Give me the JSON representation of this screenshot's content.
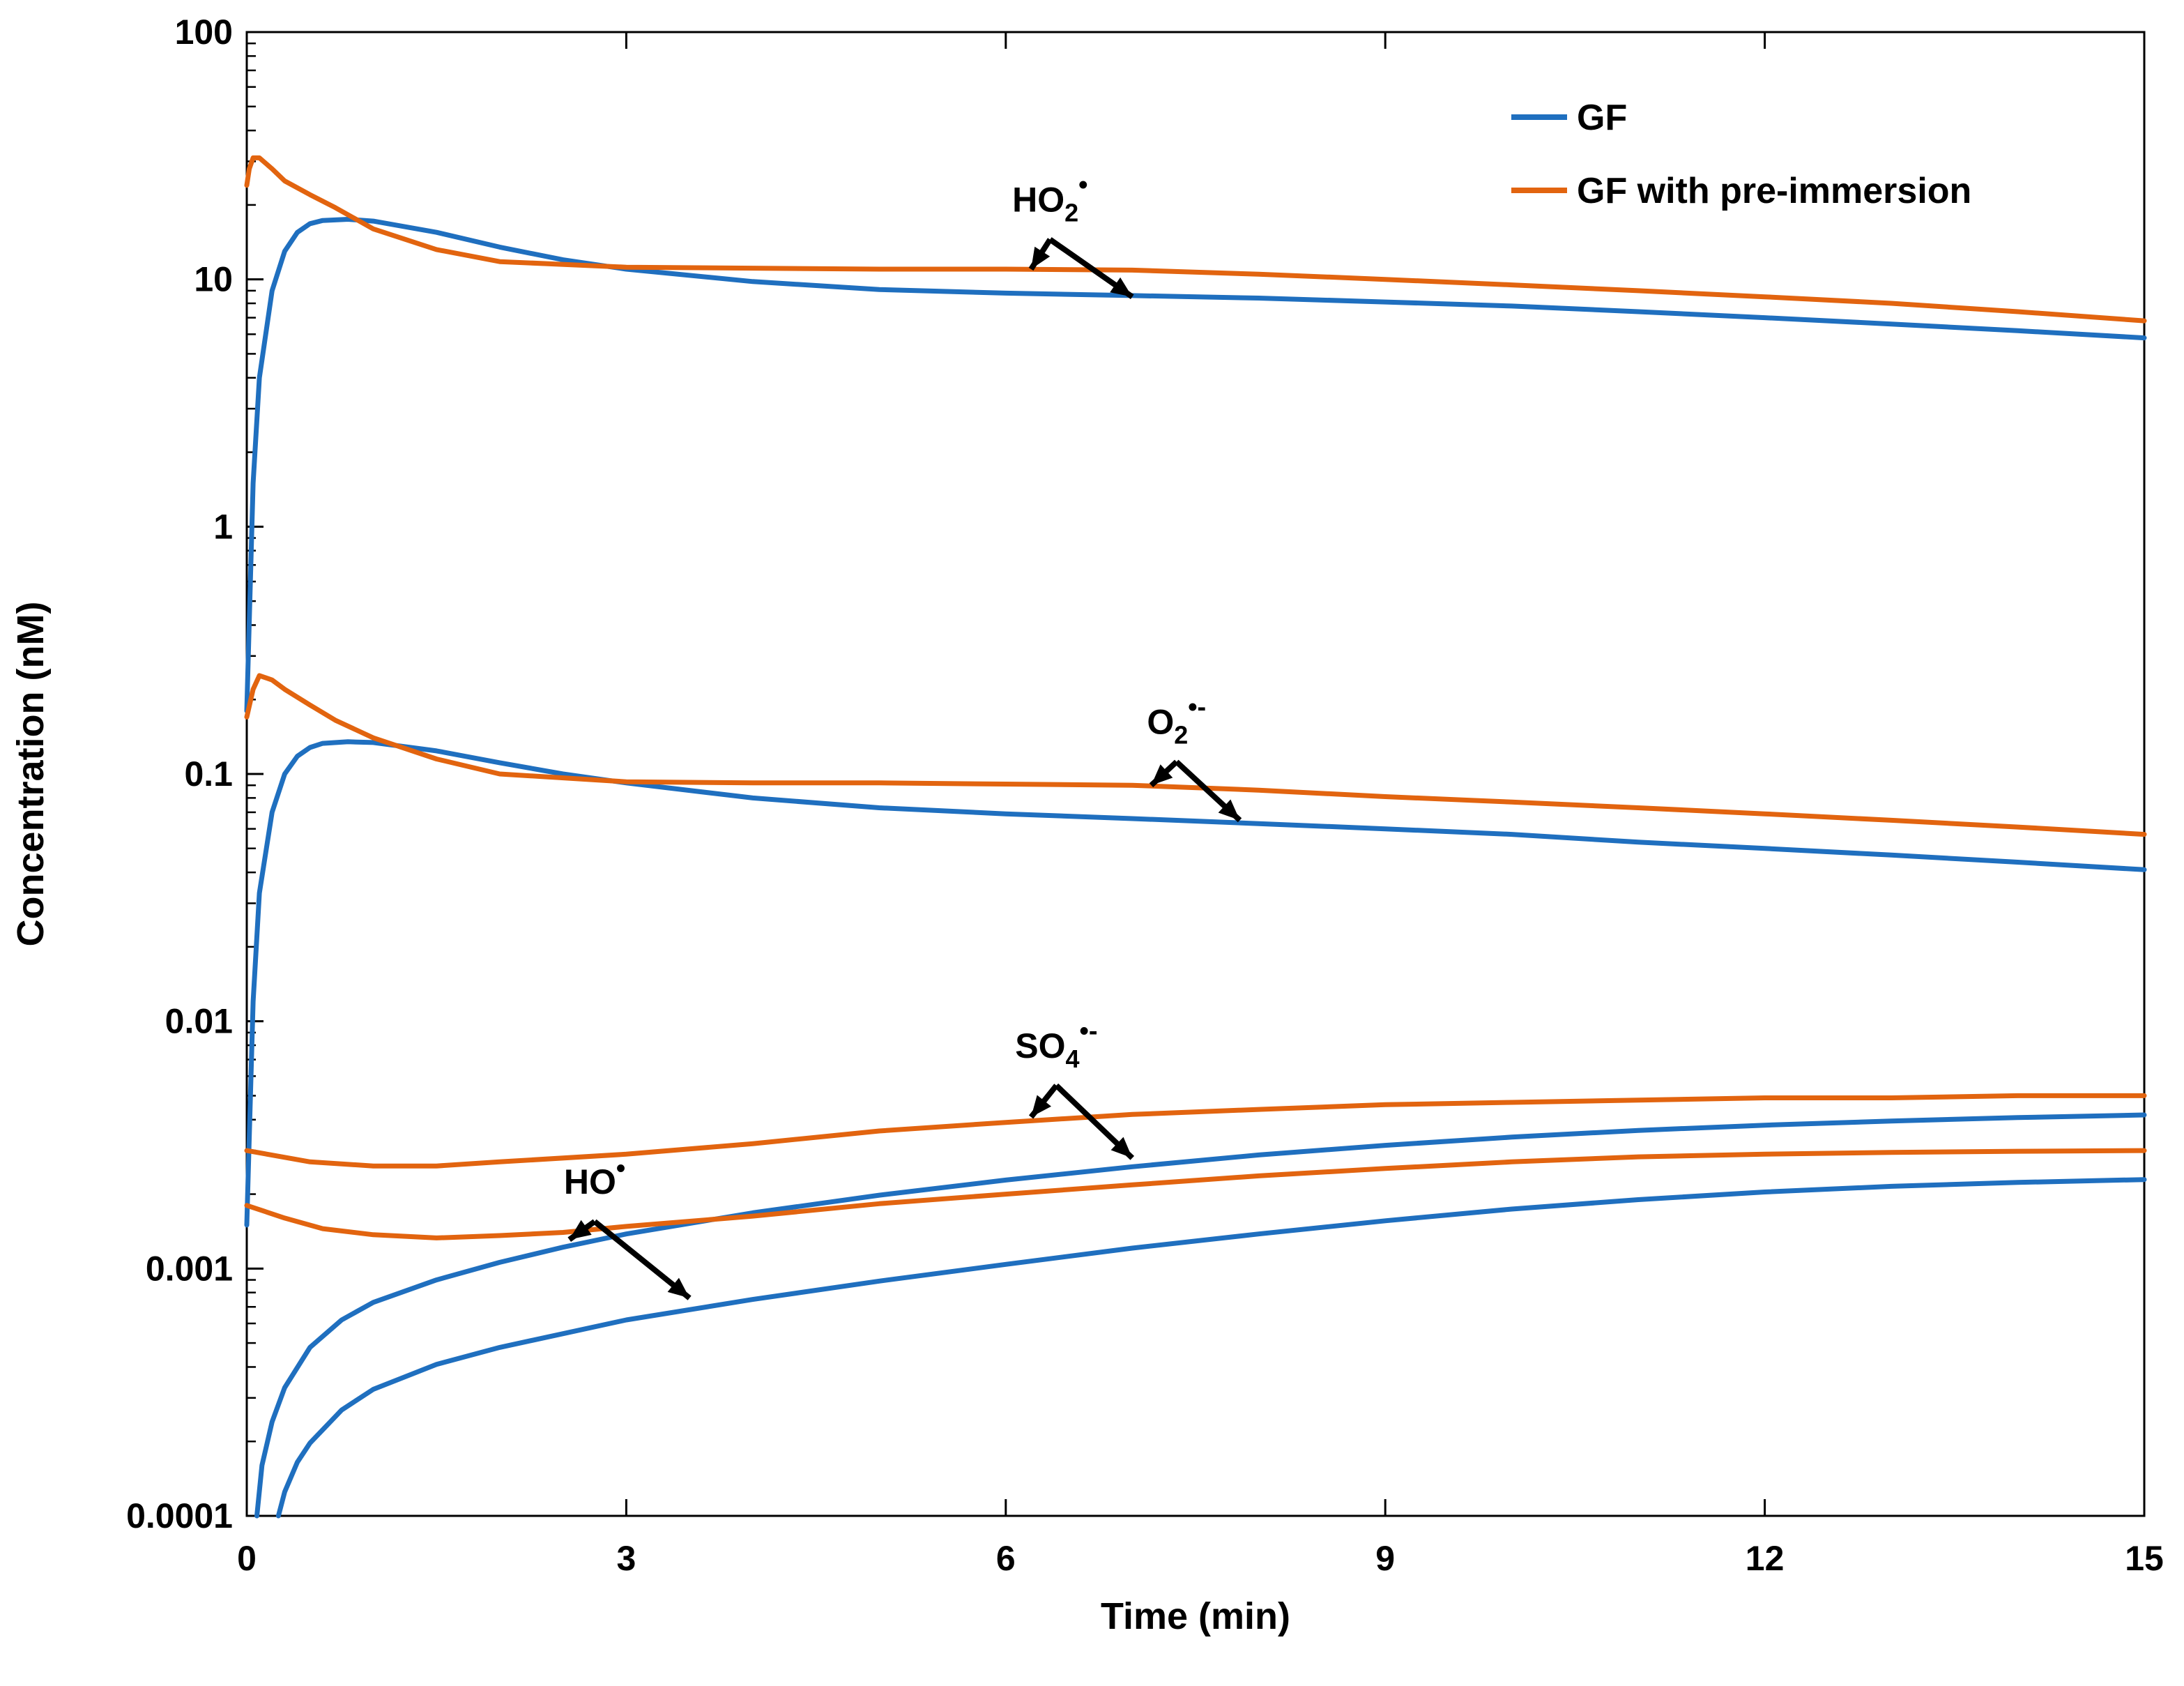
{
  "chart_data": {
    "type": "line",
    "xlabel": "Time (min)",
    "ylabel": "Concentration (nM)",
    "xlim": [
      0,
      15
    ],
    "ylim": [
      0.0001,
      100
    ],
    "yscale": "log",
    "x_ticks": [
      0,
      3,
      6,
      9,
      12,
      15
    ],
    "x_tick_labels": [
      "0",
      "3",
      "6",
      "9",
      "12",
      "15"
    ],
    "y_ticks": [
      0.0001,
      0.001,
      0.01,
      0.1,
      1,
      10,
      100
    ],
    "y_tick_labels": [
      "0.0001",
      "0.001",
      "0.01",
      "0.1",
      "1",
      "10",
      "100"
    ],
    "grid": false,
    "legend": {
      "position": "top-right",
      "entries": [
        {
          "label": "GF",
          "color": "#1f6fbf"
        },
        {
          "label": "GF with pre-immersion",
          "color": "#e2640f"
        }
      ]
    },
    "series": [
      {
        "name": "GF",
        "species": "HO2",
        "color": "#1f6fbf",
        "x": [
          0,
          0.05,
          0.1,
          0.2,
          0.3,
          0.4,
          0.5,
          0.6,
          0.8,
          1.0,
          1.5,
          2.0,
          2.5,
          3,
          4,
          5,
          6,
          7,
          8,
          9,
          10,
          11,
          12,
          13,
          14,
          15
        ],
        "y": [
          0.18,
          1.5,
          4,
          9,
          13,
          15.5,
          16.8,
          17.3,
          17.5,
          17.2,
          15.5,
          13.5,
          12,
          11,
          9.8,
          9.1,
          8.8,
          8.6,
          8.4,
          8.1,
          7.8,
          7.4,
          7,
          6.6,
          6.2,
          5.8
        ]
      },
      {
        "name": "GF with pre-immersion",
        "species": "HO2",
        "color": "#e2640f",
        "x": [
          0,
          0.02,
          0.05,
          0.1,
          0.2,
          0.3,
          0.5,
          0.7,
          1.0,
          1.5,
          2.0,
          3,
          4,
          5,
          6,
          7,
          8,
          9,
          10,
          11,
          12,
          13,
          14,
          15
        ],
        "y": [
          24,
          28,
          31,
          31,
          28,
          25,
          22,
          19.5,
          16,
          13.2,
          11.8,
          11.2,
          11.1,
          11,
          11,
          10.9,
          10.5,
          10,
          9.5,
          9,
          8.5,
          8,
          7.4,
          6.8
        ]
      },
      {
        "name": "GF",
        "species": "O2",
        "color": "#1f6fbf",
        "x": [
          0,
          0.05,
          0.1,
          0.2,
          0.3,
          0.4,
          0.5,
          0.6,
          0.8,
          1.0,
          1.5,
          2.0,
          2.5,
          3,
          4,
          5,
          6,
          7,
          8,
          9,
          10,
          11,
          12,
          13,
          14,
          15
        ],
        "y": [
          0.0015,
          0.012,
          0.033,
          0.07,
          0.1,
          0.118,
          0.128,
          0.133,
          0.135,
          0.134,
          0.124,
          0.111,
          0.1,
          0.092,
          0.08,
          0.073,
          0.069,
          0.066,
          0.063,
          0.06,
          0.057,
          0.053,
          0.05,
          0.047,
          0.044,
          0.041
        ]
      },
      {
        "name": "GF with pre-immersion",
        "species": "O2",
        "color": "#e2640f",
        "x": [
          0,
          0.05,
          0.1,
          0.2,
          0.3,
          0.5,
          0.7,
          1.0,
          1.5,
          2.0,
          3,
          4,
          5,
          6,
          7,
          8,
          9,
          10,
          11,
          12,
          13,
          14,
          15
        ],
        "y": [
          0.17,
          0.22,
          0.25,
          0.24,
          0.22,
          0.19,
          0.165,
          0.14,
          0.115,
          0.1,
          0.093,
          0.092,
          0.092,
          0.091,
          0.09,
          0.086,
          0.081,
          0.077,
          0.073,
          0.069,
          0.065,
          0.061,
          0.057
        ]
      },
      {
        "name": "GF",
        "species": "SO4",
        "color": "#1f6fbf",
        "x": [
          0.08,
          0.12,
          0.2,
          0.3,
          0.5,
          0.75,
          1.0,
          1.5,
          2.0,
          2.5,
          3,
          4,
          5,
          6,
          7,
          8,
          9,
          10,
          11,
          12,
          13,
          14,
          15
        ],
        "y": [
          0.0001,
          0.00016,
          0.00024,
          0.00033,
          0.00048,
          0.00062,
          0.00073,
          0.0009,
          0.00106,
          0.00122,
          0.00138,
          0.00168,
          0.00198,
          0.00228,
          0.00258,
          0.00288,
          0.00315,
          0.0034,
          0.00362,
          0.0038,
          0.00395,
          0.00408,
          0.00418
        ]
      },
      {
        "name": "GF with pre-immersion",
        "species": "SO4",
        "color": "#e2640f",
        "x": [
          0,
          0.5,
          1.0,
          1.5,
          2.0,
          3,
          4,
          5,
          6,
          7,
          8,
          9,
          10,
          11,
          12,
          13,
          14,
          15
        ],
        "y": [
          0.003,
          0.0027,
          0.0026,
          0.0026,
          0.0027,
          0.0029,
          0.0032,
          0.0036,
          0.0039,
          0.0042,
          0.0044,
          0.0046,
          0.0047,
          0.0048,
          0.0049,
          0.0049,
          0.005,
          0.005
        ]
      },
      {
        "name": "GF",
        "species": "HO",
        "color": "#1f6fbf",
        "x": [
          0.25,
          0.3,
          0.4,
          0.5,
          0.75,
          1.0,
          1.5,
          2.0,
          3,
          4,
          5,
          6,
          7,
          8,
          9,
          10,
          11,
          12,
          13,
          14,
          15
        ],
        "y": [
          0.0001,
          0.000125,
          0.000165,
          0.000197,
          0.000268,
          0.000325,
          0.00041,
          0.00048,
          0.00062,
          0.00075,
          0.00089,
          0.00104,
          0.00121,
          0.00138,
          0.00156,
          0.00174,
          0.0019,
          0.00204,
          0.00215,
          0.00223,
          0.00229
        ]
      },
      {
        "name": "GF with pre-immersion",
        "species": "HO",
        "color": "#e2640f",
        "x": [
          0,
          0.3,
          0.6,
          1.0,
          1.5,
          2.0,
          2.5,
          3,
          4,
          5,
          6,
          7,
          8,
          9,
          10,
          11,
          12,
          13,
          14,
          15
        ],
        "y": [
          0.0018,
          0.0016,
          0.00145,
          0.00137,
          0.00133,
          0.00136,
          0.0014,
          0.00148,
          0.00163,
          0.00183,
          0.002,
          0.00218,
          0.00237,
          0.00254,
          0.0027,
          0.00283,
          0.0029,
          0.00295,
          0.00298,
          0.003
        ]
      }
    ],
    "annotations": [
      {
        "id": "ho2",
        "base": "HO",
        "sub": "2",
        "sup": "•",
        "anchor": [
          6.35,
          14.5
        ],
        "tips": [
          [
            6.2,
            11
          ],
          [
            7.0,
            8.5
          ]
        ]
      },
      {
        "id": "o2",
        "base": "O",
        "sub": "2",
        "sup": "•-",
        "anchor": [
          7.35,
          0.112
        ],
        "tips": [
          [
            7.15,
            0.09
          ],
          [
            7.85,
            0.065
          ]
        ]
      },
      {
        "id": "so4",
        "base": "SO",
        "sub": "4",
        "sup": "•-",
        "anchor": [
          6.4,
          0.0055
        ],
        "tips": [
          [
            6.2,
            0.0041
          ],
          [
            7.0,
            0.0028
          ]
        ]
      },
      {
        "id": "ho",
        "base": "HO",
        "sub": "",
        "sup": "•",
        "anchor": [
          2.75,
          0.00155
        ],
        "tips": [
          [
            2.55,
            0.00131
          ],
          [
            3.5,
            0.00076
          ]
        ]
      }
    ]
  }
}
